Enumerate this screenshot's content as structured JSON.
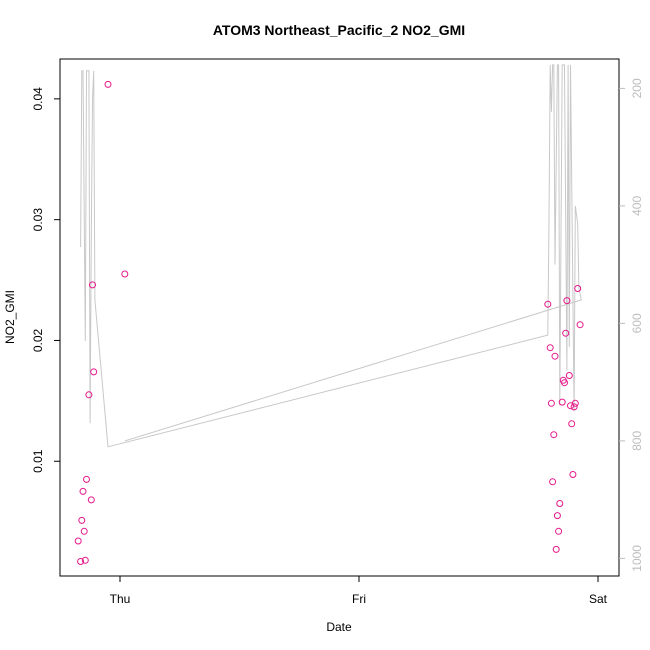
{
  "chart_data": {
    "type": "scatter",
    "title": "ATOM3 Northeast_Pacific_2 NO2_GMI",
    "xlabel": "Date",
    "ylabel": "NO2_GMI",
    "x_ticks": [
      "Thu",
      "Fri",
      "Sat"
    ],
    "y_ticks": [
      "0.01",
      "0.02",
      "0.03",
      "0.04"
    ],
    "y2_ticks": [
      "200",
      "400",
      "600",
      "800",
      "1000"
    ],
    "ylim": [
      0.0005,
      0.0433
    ],
    "y2lim": [
      1030,
      150
    ],
    "grid": false,
    "series": [
      {
        "role": "points",
        "color": "#e5188a",
        "points": [
          [
            -0.175,
            0.0034
          ],
          [
            -0.165,
            0.0017
          ],
          [
            -0.16,
            0.0051
          ],
          [
            -0.155,
            0.0075
          ],
          [
            -0.15,
            0.0042
          ],
          [
            -0.145,
            0.0018
          ],
          [
            -0.14,
            0.0085
          ],
          [
            -0.13,
            0.0155
          ],
          [
            -0.12,
            0.0068
          ],
          [
            -0.115,
            0.0246
          ],
          [
            -0.11,
            0.0174
          ],
          [
            -0.05,
            0.0412
          ],
          [
            0.02,
            0.0255
          ],
          [
            1.79,
            0.023
          ],
          [
            1.8,
            0.0194
          ],
          [
            1.805,
            0.0148
          ],
          [
            1.81,
            0.0083
          ],
          [
            1.815,
            0.0122
          ],
          [
            1.82,
            0.0187
          ],
          [
            1.825,
            0.0027
          ],
          [
            1.83,
            0.0055
          ],
          [
            1.835,
            0.0042
          ],
          [
            1.84,
            0.0065
          ],
          [
            1.85,
            0.0149
          ],
          [
            1.855,
            0.0167
          ],
          [
            1.86,
            0.0165
          ],
          [
            1.865,
            0.0206
          ],
          [
            1.87,
            0.0233
          ],
          [
            1.88,
            0.0171
          ],
          [
            1.885,
            0.0146
          ],
          [
            1.89,
            0.0131
          ],
          [
            1.895,
            0.0089
          ],
          [
            1.9,
            0.0145
          ],
          [
            1.905,
            0.0148
          ],
          [
            1.915,
            0.0243
          ],
          [
            1.925,
            0.0213
          ]
        ]
      },
      {
        "role": "pressure",
        "axis": "right",
        "color": "#c8c8c8",
        "points": [
          [
            -0.165,
            470
          ],
          [
            -0.16,
            170
          ],
          [
            -0.155,
            170
          ],
          [
            -0.145,
            630
          ],
          [
            -0.14,
            170
          ],
          [
            -0.13,
            170
          ],
          [
            -0.125,
            770
          ],
          [
            -0.12,
            450
          ],
          [
            -0.115,
            220
          ],
          [
            -0.11,
            170
          ],
          [
            -0.105,
            560
          ],
          [
            -0.05,
            810
          ],
          [
            1.79,
            620
          ],
          [
            1.795,
            420
          ],
          [
            1.8,
            160
          ],
          [
            1.805,
            240
          ],
          [
            1.81,
            160
          ],
          [
            1.815,
            160
          ],
          [
            1.82,
            500
          ],
          [
            1.83,
            160
          ],
          [
            1.835,
            160
          ],
          [
            1.84,
            740
          ],
          [
            1.85,
            160
          ],
          [
            1.86,
            160
          ],
          [
            1.87,
            680
          ],
          [
            1.875,
            160
          ],
          [
            1.88,
            640
          ],
          [
            1.885,
            160
          ],
          [
            1.9,
            750
          ],
          [
            1.905,
            400
          ],
          [
            1.915,
            430
          ],
          [
            1.92,
            540
          ],
          [
            1.93,
            560
          ],
          [
            0.02,
            800
          ]
        ]
      }
    ]
  }
}
